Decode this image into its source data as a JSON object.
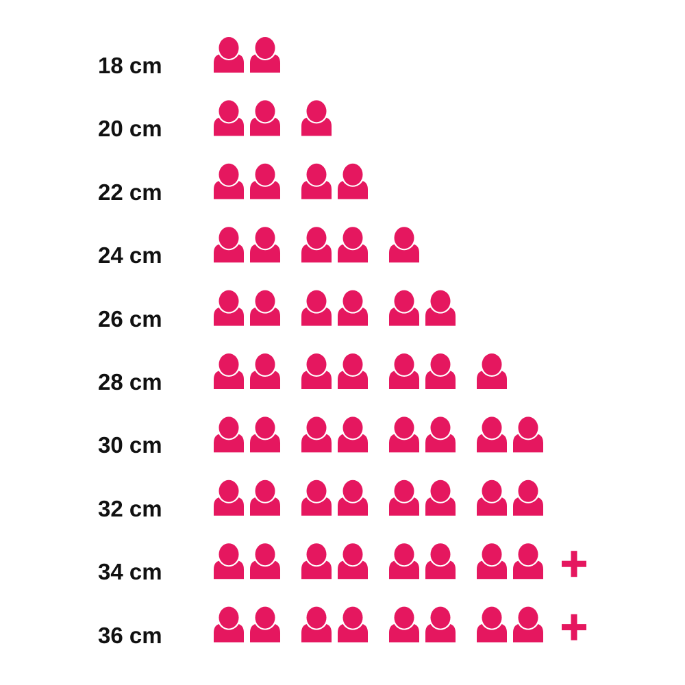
{
  "chart_data": {
    "type": "pictograph",
    "icon": "person-icon",
    "color": "#E5175F",
    "categories": [
      "18 cm",
      "20 cm",
      "22 cm",
      "24 cm",
      "26 cm",
      "28 cm",
      "30 cm",
      "32 cm",
      "34 cm",
      "36 cm"
    ],
    "values": [
      2,
      3,
      4,
      5,
      6,
      7,
      8,
      8,
      8,
      8
    ],
    "plus": [
      false,
      false,
      false,
      false,
      false,
      false,
      false,
      false,
      true,
      true
    ],
    "plus_symbol": "+"
  }
}
